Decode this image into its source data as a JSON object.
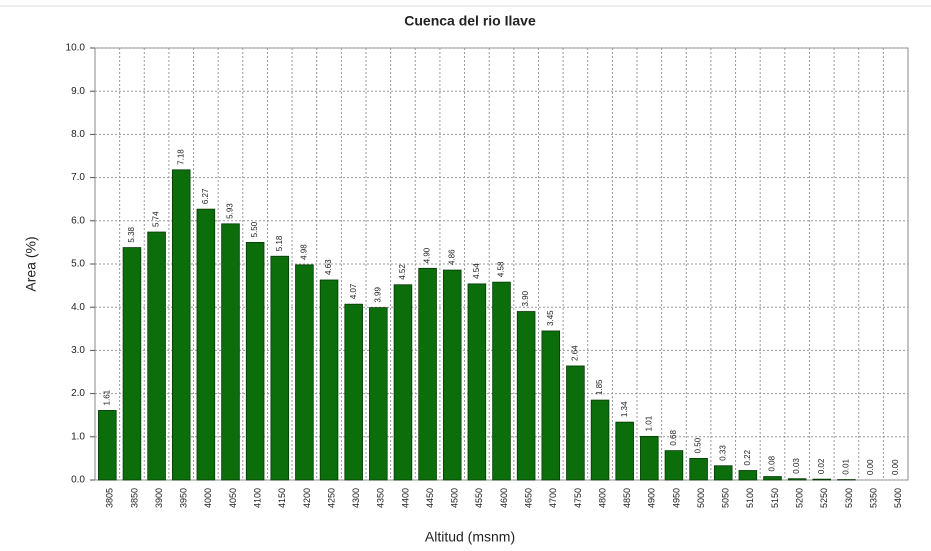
{
  "chart_data": {
    "type": "bar",
    "title": "Cuenca del rio Ilave",
    "x_label": "Altitud (msnm)",
    "y_label": "Area (%)",
    "categories": [
      "3805",
      "3850",
      "3900",
      "3950",
      "4000",
      "4050",
      "4100",
      "4150",
      "4200",
      "4250",
      "4300",
      "4350",
      "4400",
      "4450",
      "4500",
      "4550",
      "4600",
      "4650",
      "4700",
      "4750",
      "4800",
      "4850",
      "4900",
      "4950",
      "5000",
      "5050",
      "5100",
      "5150",
      "5200",
      "5250",
      "5300",
      "5350",
      "5400"
    ],
    "values": [
      1.61,
      5.38,
      5.74,
      7.18,
      6.27,
      5.93,
      5.5,
      5.18,
      4.98,
      4.63,
      4.07,
      3.99,
      4.52,
      4.9,
      4.86,
      4.54,
      4.58,
      3.9,
      3.45,
      2.64,
      1.85,
      1.34,
      1.01,
      0.68,
      0.5,
      0.33,
      0.22,
      0.08,
      0.03,
      0.02,
      0.01,
      0.0,
      0.0
    ],
    "value_labels": [
      "1.61",
      "5.38",
      "5.74",
      "7.18",
      "6.27",
      "5.93",
      "5.50",
      "5.18",
      "4.98",
      "4.63",
      "4.07",
      "3.99",
      "4.52",
      "4.90",
      "4.86",
      "4.54",
      "4.58",
      "3.90",
      "3.45",
      "2.64",
      "1.85",
      "1.34",
      "1.01",
      "0.68",
      "0.50",
      "0.33",
      "0.22",
      "0.08",
      "0.03",
      "0.02",
      "0.01",
      "0.00",
      "0.00"
    ],
    "color": "#0b6e0b",
    "ylim": [
      0,
      10
    ],
    "yticks": [
      {
        "value": 0,
        "label": "0.0"
      },
      {
        "value": 1,
        "label": "1.0"
      },
      {
        "value": 2,
        "label": "2.0"
      },
      {
        "value": 3,
        "label": "3.0"
      },
      {
        "value": 4,
        "label": "4.0"
      },
      {
        "value": 5,
        "label": "5.0"
      },
      {
        "value": 6,
        "label": "6.0"
      },
      {
        "value": 7,
        "label": "7.0"
      },
      {
        "value": 8,
        "label": "8.0"
      },
      {
        "value": 9,
        "label": "9.0"
      },
      {
        "value": 10,
        "label": "10.0"
      }
    ],
    "grid": true
  }
}
